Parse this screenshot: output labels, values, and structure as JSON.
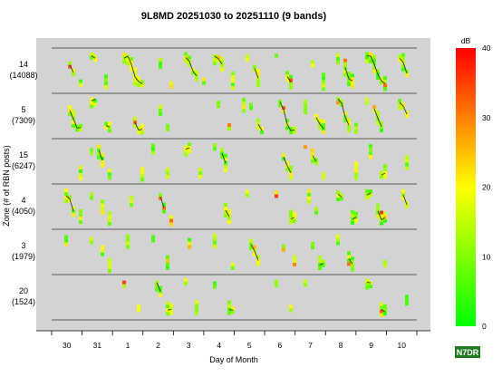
{
  "chart_data": {
    "type": "heatmap",
    "title": "9L8MD 20251030 to 20251110 (9 bands)",
    "xlabel": "Day of Month",
    "ylabel": "Zone (# of RBN posts)",
    "x_tick_labels": [
      "30",
      "31",
      "1",
      "2",
      "3",
      "4",
      "5",
      "6",
      "7",
      "8",
      "9",
      "10"
    ],
    "zones": [
      {
        "zone": "14",
        "posts": "(14088)"
      },
      {
        "zone": "5",
        "posts": "(7309)"
      },
      {
        "zone": "15",
        "posts": "(6247)"
      },
      {
        "zone": "4",
        "posts": "(4050)"
      },
      {
        "zone": "3",
        "posts": "(1979)"
      },
      {
        "zone": "20",
        "posts": "(1524)"
      }
    ],
    "colorbar": {
      "label": "dB",
      "range": [
        0,
        40
      ],
      "ticks": [
        "0",
        "10",
        "20",
        "30",
        "40"
      ],
      "low_color": "#00ff00",
      "mid_color": "#ffff00",
      "high_color": "#ff0000"
    },
    "panel_background": "#d3d3d3",
    "series_line_color": "#333333",
    "grid": false
  },
  "credit": "N7DR"
}
